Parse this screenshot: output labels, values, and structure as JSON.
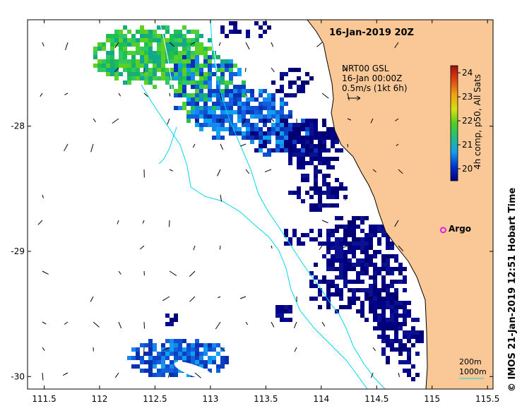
{
  "map": {
    "title": "16-Jan-2019 20Z",
    "product_line1": "NRT00 GSL",
    "product_line2": "16-Jan 00:00Z",
    "product_line3": "0.5m/s (1kt 6h)",
    "colorbar_title": "4h comp, p50, All Sats",
    "colorbar_ticks": [
      "20",
      "21",
      "22",
      "23",
      "24"
    ],
    "colorbar_range": [
      19.5,
      24.3
    ],
    "argo_label": "Argo",
    "credit": "© IMOS 21-Jan-2019 12:51 Hobart Time",
    "scale_label_1": "200m",
    "scale_label_2": "1000m",
    "lon_ticks": [
      "111.5",
      "112",
      "112.5",
      "113",
      "113.5",
      "114",
      "114.5",
      "115",
      "115.5"
    ],
    "lat_ticks": [
      "-28",
      "-29",
      "-30"
    ],
    "lon_range": [
      111.35,
      115.55
    ],
    "lat_range": [
      -27.15,
      -30.1
    ],
    "land_color": "#fac896",
    "argo_color": "#e020e0",
    "isobath_color": "#00d8f0",
    "argo_position": [
      115.1,
      -28.83
    ]
  }
}
